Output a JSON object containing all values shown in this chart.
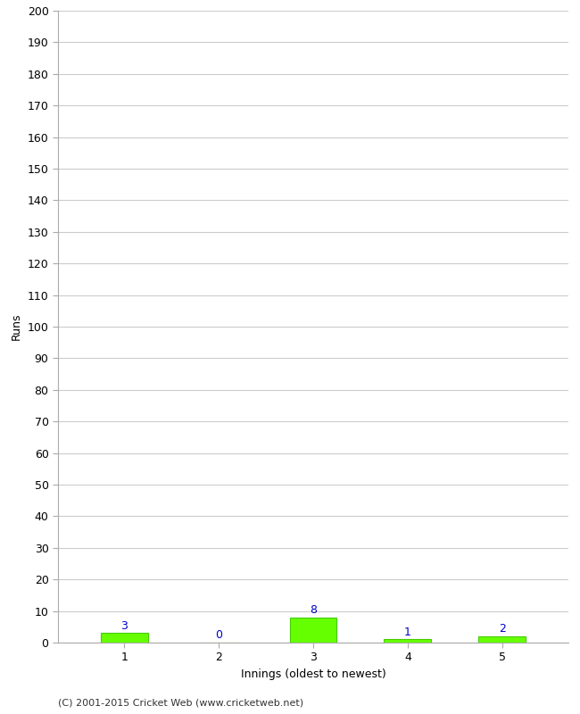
{
  "categories": [
    1,
    2,
    3,
    4,
    5
  ],
  "values": [
    3,
    0,
    8,
    1,
    2
  ],
  "bar_color": "#66ff00",
  "bar_edge_color": "#44cc00",
  "xlabel": "Innings (oldest to newest)",
  "ylabel": "Runs",
  "ylim": [
    0,
    200
  ],
  "ytick_step": 10,
  "background_color": "#ffffff",
  "grid_color": "#cccccc",
  "label_color": "#0000cc",
  "footer": "(C) 2001-2015 Cricket Web (www.cricketweb.net)",
  "figsize": [
    6.5,
    8.0
  ],
  "dpi": 100,
  "bar_width": 0.5
}
